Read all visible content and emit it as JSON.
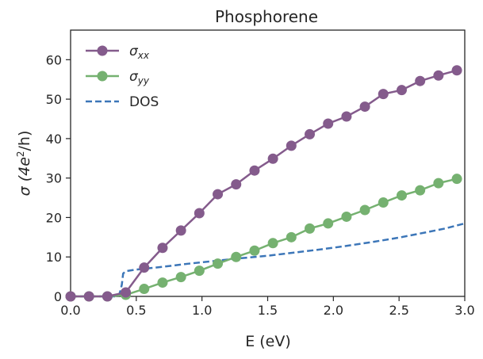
{
  "chart_data": {
    "type": "line",
    "title": "Phosphorene",
    "xlabel": "E (eV)",
    "ylabel": {
      "main": "σ (4e",
      "sup": "2",
      "tail": "/h)"
    },
    "xlim": [
      0,
      3.0
    ],
    "ylim": [
      0,
      67.5
    ],
    "x_ticks": [
      "0.0",
      "0.5",
      "1.0",
      "1.5",
      "2.0",
      "2.5",
      "3.0"
    ],
    "y_ticks": [
      "0",
      "10",
      "20",
      "30",
      "40",
      "50",
      "60"
    ],
    "grid": false,
    "legend_position": "top-left",
    "series": [
      {
        "name": {
          "base": "σ",
          "sub": "xx"
        },
        "color": "#845b8c",
        "style": "solid-with-markers",
        "x": [
          0.0,
          0.14,
          0.28,
          0.42,
          0.56,
          0.7,
          0.84,
          0.98,
          1.12,
          1.26,
          1.4,
          1.54,
          1.68,
          1.82,
          1.96,
          2.1,
          2.24,
          2.38,
          2.52,
          2.66,
          2.8,
          2.94
        ],
        "values": [
          0.0,
          0.0,
          0.0,
          1.0,
          7.3,
          12.3,
          16.7,
          21.1,
          25.9,
          28.4,
          31.9,
          34.9,
          38.2,
          41.1,
          43.8,
          45.6,
          48.1,
          51.3,
          52.3,
          54.6,
          56.0,
          57.3
        ]
      },
      {
        "name": {
          "base": "σ",
          "sub": "yy"
        },
        "color": "#75b170",
        "style": "solid-with-markers",
        "x": [
          0.0,
          0.14,
          0.28,
          0.42,
          0.56,
          0.7,
          0.84,
          0.98,
          1.12,
          1.26,
          1.4,
          1.54,
          1.68,
          1.82,
          1.96,
          2.1,
          2.24,
          2.38,
          2.52,
          2.66,
          2.8,
          2.94
        ],
        "values": [
          0.0,
          0.0,
          0.0,
          0.4,
          1.9,
          3.5,
          4.9,
          6.5,
          8.3,
          10.0,
          11.6,
          13.5,
          15.0,
          17.2,
          18.5,
          20.2,
          21.9,
          23.8,
          25.6,
          26.9,
          28.7,
          29.8
        ]
      },
      {
        "name": {
          "base": "DOS",
          "sub": ""
        },
        "color": "#3c76b8",
        "style": "dashed",
        "x": [
          0.0,
          0.36,
          0.37,
          0.38,
          0.39,
          0.4,
          0.42,
          0.5,
          0.7,
          0.9,
          1.1,
          1.3,
          1.5,
          1.7,
          1.9,
          2.1,
          2.3,
          2.5,
          2.7,
          2.85,
          3.0
        ],
        "values": [
          0.0,
          0.0,
          0.5,
          1.5,
          3.0,
          5.8,
          6.4,
          6.8,
          7.5,
          8.3,
          9.0,
          9.7,
          10.3,
          11.1,
          11.9,
          12.8,
          13.8,
          14.9,
          16.2,
          17.2,
          18.5
        ]
      }
    ]
  }
}
